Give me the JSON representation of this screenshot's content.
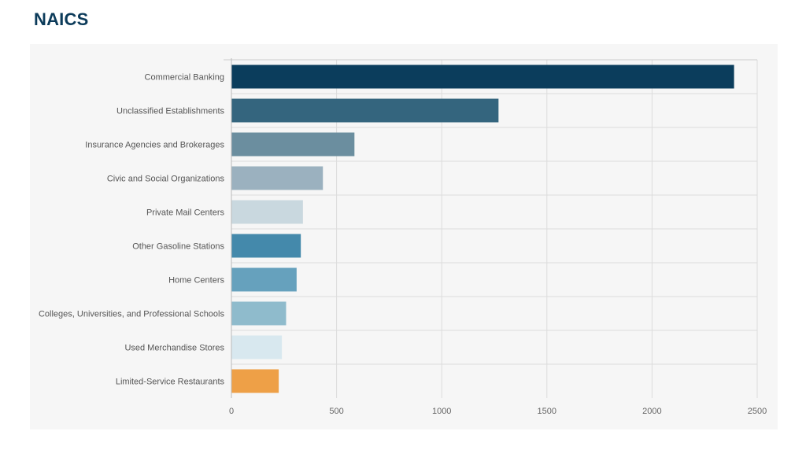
{
  "page": {
    "title": "NAICS"
  },
  "chart_data": {
    "type": "bar",
    "orientation": "horizontal",
    "categories": [
      "Commercial Banking",
      "Unclassified Establishments",
      "Insurance Agencies and Brokerages",
      "Civic and Social Organizations",
      "Private Mail Centers",
      "Other Gasoline Stations",
      "Home Centers",
      "Colleges, Universities, and Professional Schools",
      "Used Merchandise Stores",
      "Limited-Service Restaurants"
    ],
    "values": [
      2390,
      1270,
      585,
      435,
      340,
      330,
      310,
      260,
      240,
      225
    ],
    "colors": [
      "#0b3d5c",
      "#34657e",
      "#6b8e9f",
      "#9bb1bf",
      "#c9d8df",
      "#4489ab",
      "#66a1bd",
      "#8fbbcc",
      "#d8e8ef",
      "#eea047"
    ],
    "xlim": [
      0,
      2500
    ],
    "xticks": [
      0,
      500,
      1000,
      1500,
      2000,
      2500
    ],
    "title": "",
    "xlabel": "",
    "ylabel": "",
    "grid": true,
    "legend": "none"
  }
}
